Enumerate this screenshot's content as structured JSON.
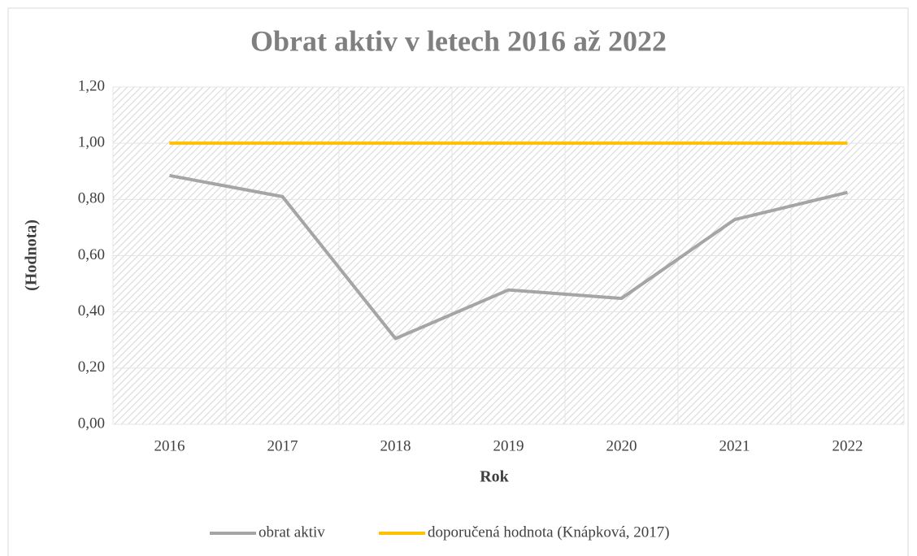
{
  "chart_data": {
    "type": "line",
    "title": "Obrat aktiv v letech 2016 až 2022",
    "x_label": "Rok",
    "y_label": "(Hodnota)",
    "categories": [
      "2016",
      "2017",
      "2018",
      "2019",
      "2020",
      "2021",
      "2022"
    ],
    "series": [
      {
        "name": "obrat aktiv",
        "color": "#a5a5a5",
        "values": [
          0.885,
          0.81,
          0.305,
          0.478,
          0.448,
          0.728,
          0.825
        ]
      },
      {
        "name": "doporučená hodnota (Knápková, 2017)",
        "color": "#ffc000",
        "values": [
          1,
          1,
          1,
          1,
          1,
          1,
          1
        ]
      }
    ],
    "ylim": [
      0,
      1.2
    ],
    "yticks": [
      {
        "value": 0,
        "label": "0,00"
      },
      {
        "value": 0.2,
        "label": "0,20"
      },
      {
        "value": 0.4,
        "label": "0,40"
      },
      {
        "value": 0.6,
        "label": "0,60"
      },
      {
        "value": 0.8,
        "label": "0,80"
      },
      {
        "value": 1,
        "label": "1,00"
      },
      {
        "value": 1.2,
        "label": "1,20"
      }
    ],
    "grid": true,
    "legend": "bottom"
  }
}
